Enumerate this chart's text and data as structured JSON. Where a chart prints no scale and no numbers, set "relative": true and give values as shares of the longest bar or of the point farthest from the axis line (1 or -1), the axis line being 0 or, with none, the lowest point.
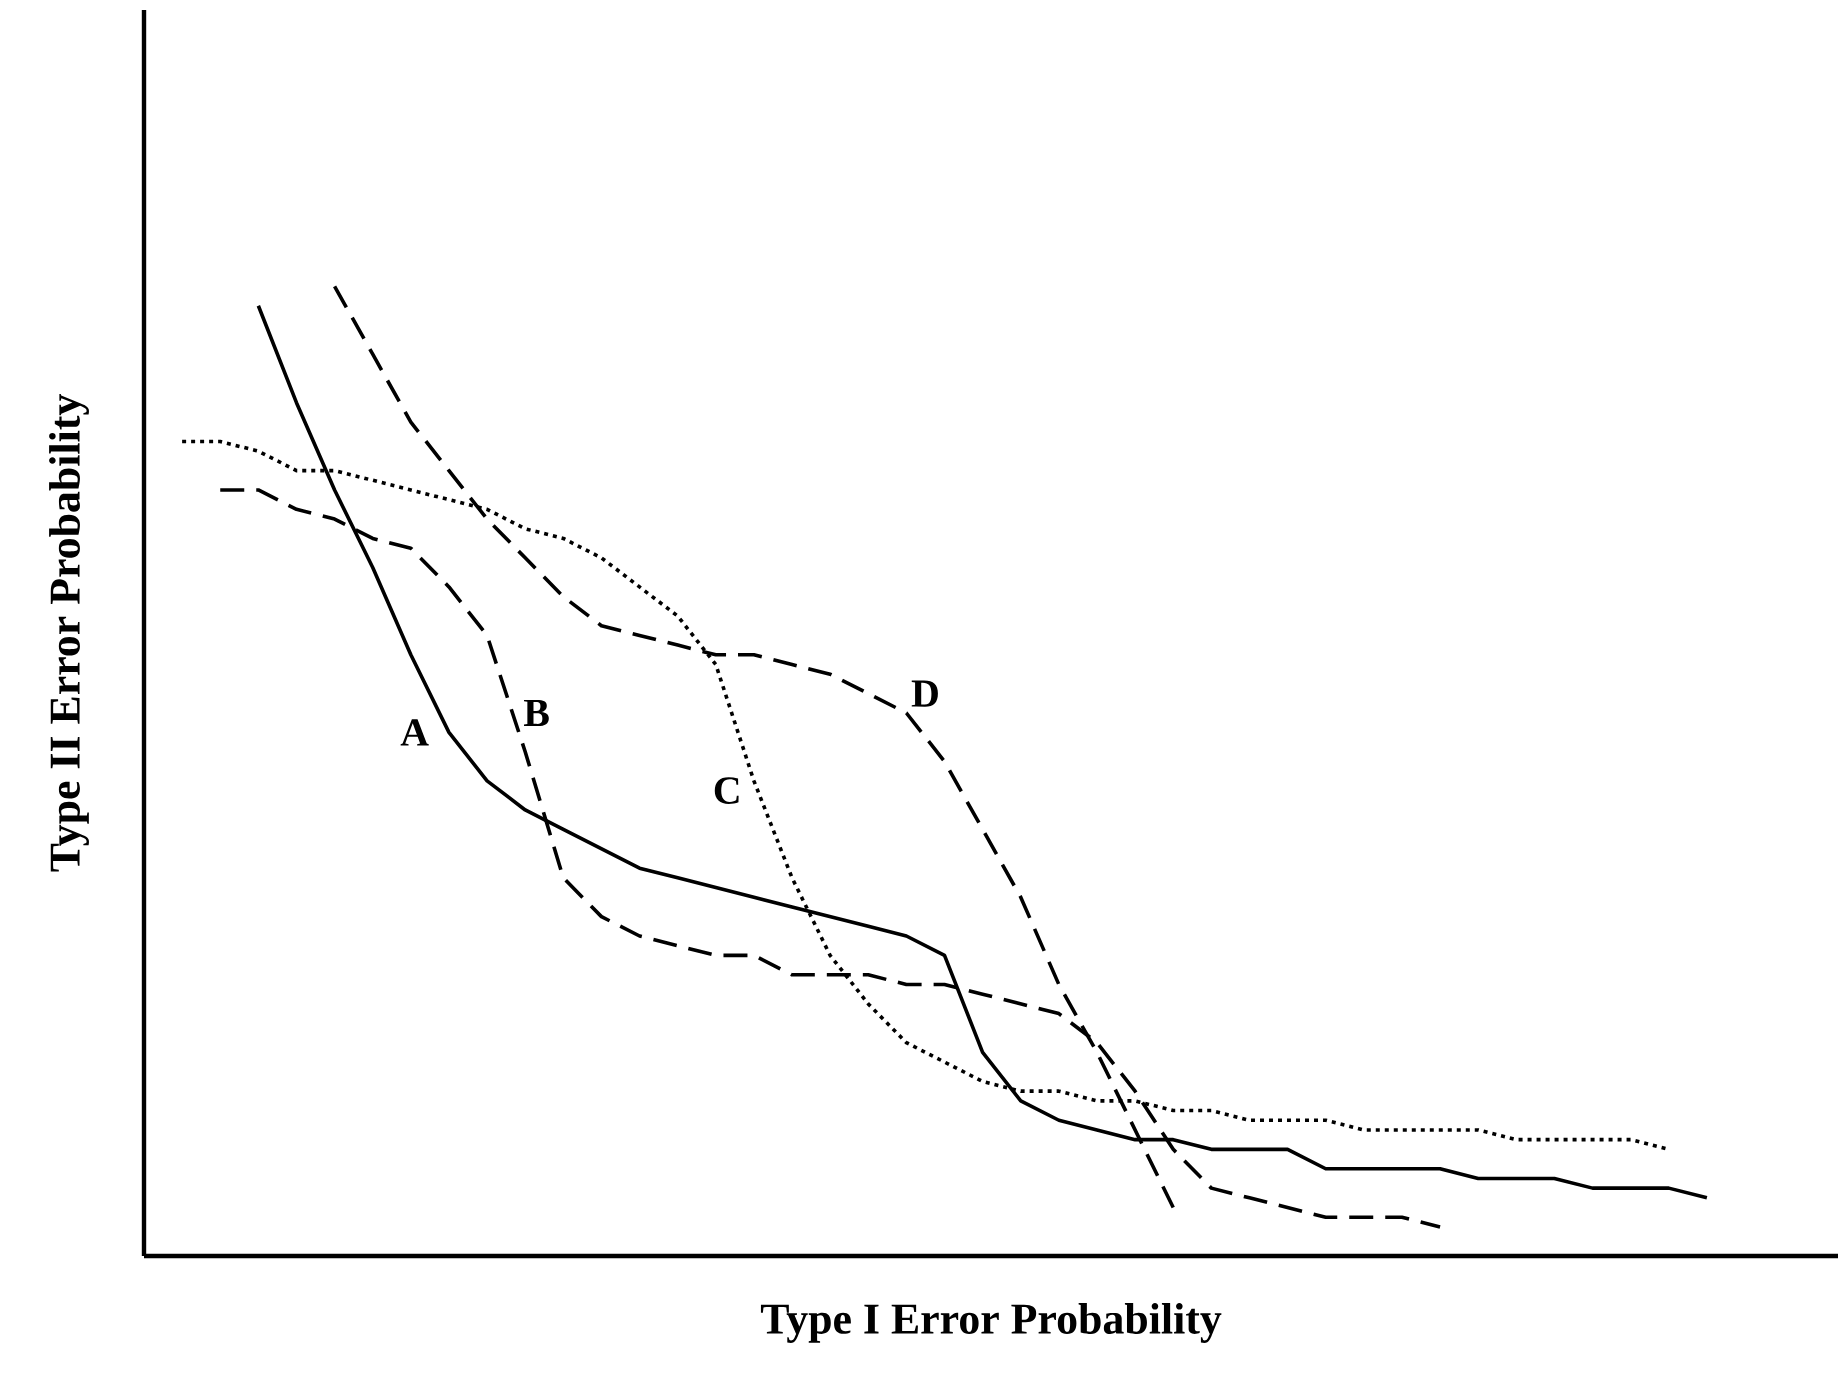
{
  "chart_data": {
    "type": "line",
    "xlabel": "Type I Error Probability",
    "ylabel": "Type II Error Probability",
    "relative": true,
    "marker": "none",
    "categories": [
      null,
      null,
      null,
      null,
      null,
      null,
      null,
      null,
      null,
      null,
      null,
      null,
      null,
      null,
      null,
      null,
      null,
      null,
      null,
      null,
      null,
      null,
      null,
      null,
      null,
      null,
      null,
      null,
      null,
      null,
      null,
      null,
      null,
      null,
      null,
      null,
      null,
      null,
      null,
      null,
      null
    ],
    "series": [
      {
        "name": "A",
        "color": "#000000",
        "line_style": "solid",
        "values": [
          null,
          null,
          0.98,
          0.88,
          0.79,
          0.71,
          0.62,
          0.54,
          0.49,
          0.46,
          0.44,
          0.42,
          0.4,
          0.39,
          0.38,
          0.37,
          0.36,
          0.35,
          0.34,
          0.33,
          0.31,
          0.21,
          0.16,
          0.14,
          0.13,
          0.12,
          0.12,
          0.11,
          0.11,
          0.11,
          0.09,
          0.09,
          0.09,
          0.09,
          0.08,
          0.08,
          0.08,
          0.07,
          0.07,
          0.07,
          0.06
        ]
      },
      {
        "name": "B",
        "color": "#000000",
        "line_style": "dashed",
        "values": [
          null,
          0.79,
          0.79,
          0.77,
          0.76,
          0.74,
          0.73,
          0.69,
          0.64,
          0.52,
          0.39,
          0.35,
          0.33,
          0.32,
          0.31,
          0.31,
          0.29,
          0.29,
          0.29,
          0.28,
          0.28,
          0.27,
          0.26,
          0.25,
          0.22,
          0.17,
          0.11,
          0.07,
          0.06,
          0.05,
          0.04,
          0.04,
          0.04,
          0.03,
          null,
          null,
          null,
          null,
          null,
          null,
          null
        ]
      },
      {
        "name": "C",
        "color": "#000000",
        "line_style": "dotted",
        "values": [
          0.84,
          0.84,
          0.83,
          0.81,
          0.81,
          0.8,
          0.79,
          0.78,
          0.77,
          0.75,
          0.74,
          0.72,
          0.69,
          0.66,
          0.61,
          0.49,
          0.39,
          0.31,
          0.26,
          0.22,
          0.2,
          0.18,
          0.17,
          0.17,
          0.16,
          0.16,
          0.15,
          0.15,
          0.14,
          0.14,
          0.14,
          0.13,
          0.13,
          0.13,
          0.13,
          0.12,
          0.12,
          0.12,
          0.12,
          0.11,
          null
        ]
      },
      {
        "name": "D",
        "color": "#000000",
        "line_style": "dashed",
        "values": [
          null,
          null,
          null,
          null,
          1.0,
          0.93,
          0.86,
          0.81,
          0.76,
          0.72,
          0.68,
          0.65,
          0.64,
          0.63,
          0.62,
          0.62,
          0.61,
          0.6,
          0.58,
          0.56,
          0.51,
          0.44,
          0.37,
          0.28,
          0.21,
          0.13,
          0.05,
          null,
          null,
          null,
          null,
          null,
          null,
          null,
          null,
          null,
          null,
          null,
          null,
          null,
          null
        ]
      }
    ]
  }
}
